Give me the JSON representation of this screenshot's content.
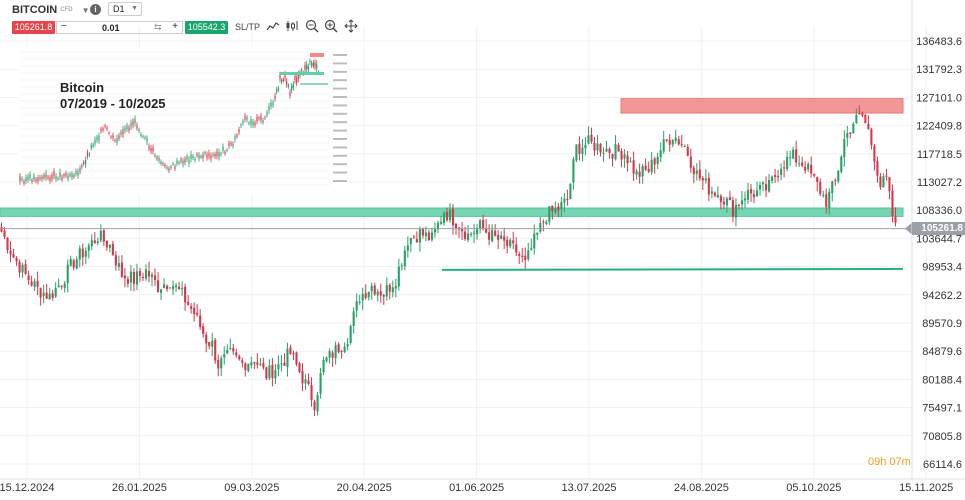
{
  "toolbar": {
    "symbol": "BITCOIN",
    "symbol_type": "CFD",
    "timeframe": "D1",
    "sell_price": "105261.8",
    "quantity": "0.01",
    "buy_price": "105542.3",
    "sltp_label": "SL/TP",
    "icons": [
      "chevron-down-icon",
      "info-icon",
      "chart-type-icon",
      "candles-icon",
      "zoom-out-icon",
      "zoom-in-icon",
      "move-icon",
      "reset-icon"
    ]
  },
  "inset": {
    "title": "Bitcoin",
    "period": "07/2019 - 10/2025"
  },
  "current_price_label": "105261.8",
  "countdown": {
    "hours": "09h",
    "minutes": "07m"
  },
  "colors": {
    "up": "#26a269",
    "down": "#d9364b",
    "resistance_zone": "#f28b8b",
    "support_zone": "#5fd0a8",
    "support_line": "#22b07d",
    "price_line": "#9aa0a6",
    "accent": "#f0a020"
  },
  "chart_data": {
    "type": "candlestick",
    "y_ticks": [
      "136483.6",
      "131792.3",
      "127101.0",
      "122409.8",
      "117718.5",
      "113027.2",
      "108336.0",
      "103644.7",
      "98953.4",
      "94262.2",
      "89570.9",
      "84879.6",
      "80188.4",
      "75497.1",
      "70805.8",
      "66114.6"
    ],
    "x_ticks": [
      "15.12.2024",
      "26.01.2025",
      "09.03.2025",
      "20.04.2025",
      "01.06.2025",
      "13.07.2025",
      "24.08.2025",
      "05.10.2025",
      "15.11.2025"
    ],
    "ylim": [
      66114.6,
      136483.6
    ],
    "resistance_zone": [
      124500,
      126900
    ],
    "support_zone": [
      107300,
      108700
    ],
    "support_line": 98400,
    "current_price": 105261.8,
    "closes": [
      [
        0,
        104800
      ],
      [
        4,
        100600
      ],
      [
        8,
        97500
      ],
      [
        12,
        95200
      ],
      [
        16,
        94000
      ],
      [
        20,
        96500
      ],
      [
        24,
        99800
      ],
      [
        28,
        101800
      ],
      [
        32,
        104000
      ],
      [
        36,
        102500
      ],
      [
        40,
        97600
      ],
      [
        44,
        96800
      ],
      [
        48,
        98200
      ],
      [
        52,
        95700
      ],
      [
        56,
        96500
      ],
      [
        60,
        94200
      ],
      [
        64,
        91200
      ],
      [
        68,
        86800
      ],
      [
        70,
        86000
      ],
      [
        72,
        82600
      ],
      [
        76,
        84300
      ],
      [
        80,
        82800
      ],
      [
        84,
        83600
      ],
      [
        88,
        80900
      ],
      [
        92,
        82500
      ],
      [
        96,
        84500
      ],
      [
        100,
        80500
      ],
      [
        104,
        76300
      ],
      [
        107,
        82900
      ],
      [
        111,
        85000
      ],
      [
        115,
        87300
      ],
      [
        119,
        94000
      ],
      [
        123,
        95800
      ],
      [
        127,
        94500
      ],
      [
        131,
        97000
      ],
      [
        135,
        103500
      ],
      [
        139,
        104500
      ],
      [
        143,
        103500
      ],
      [
        147,
        108200
      ],
      [
        151,
        106500
      ],
      [
        155,
        104200
      ],
      [
        159,
        105600
      ],
      [
        163,
        104000
      ],
      [
        167,
        102800
      ],
      [
        171,
        101500
      ],
      [
        174,
        99300
      ],
      [
        177,
        103200
      ],
      [
        181,
        107500
      ],
      [
        185,
        108600
      ],
      [
        188,
        110000
      ],
      [
        191,
        118700
      ],
      [
        195,
        119500
      ],
      [
        199,
        118800
      ],
      [
        203,
        118200
      ],
      [
        207,
        117900
      ],
      [
        211,
        114200
      ],
      [
        215,
        115000
      ],
      [
        219,
        118500
      ],
      [
        223,
        120900
      ],
      [
        227,
        119000
      ],
      [
        231,
        114300
      ],
      [
        235,
        112000
      ],
      [
        239,
        110900
      ],
      [
        243,
        108500
      ],
      [
        247,
        111000
      ],
      [
        251,
        111300
      ],
      [
        255,
        112200
      ],
      [
        259,
        116000
      ],
      [
        263,
        117200
      ],
      [
        267,
        115800
      ],
      [
        271,
        112500
      ],
      [
        274,
        109800
      ],
      [
        277,
        113000
      ],
      [
        280,
        120000
      ],
      [
        283,
        123000
      ],
      [
        286,
        124000
      ],
      [
        288,
        121500
      ],
      [
        290,
        117500
      ],
      [
        292,
        112500
      ],
      [
        294,
        113300
      ],
      [
        296,
        107500
      ],
      [
        297,
        105300
      ]
    ]
  }
}
